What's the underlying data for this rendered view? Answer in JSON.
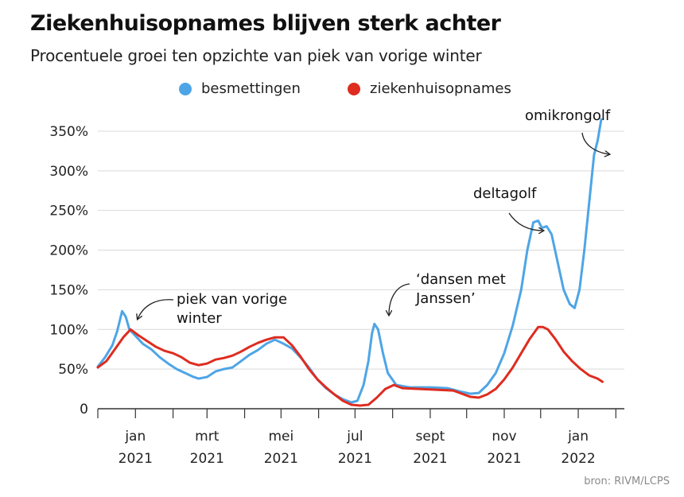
{
  "title": "Ziekenhuisopnames blijven sterk achter",
  "subtitle": "Procentuele groei ten opzichte van piek van vorige winter",
  "source": "bron: RIVM/LCPS",
  "colors": {
    "blue": "#4ea5e6",
    "red": "#de2c20",
    "grid": "#d9d9d9",
    "axis": "#333333"
  },
  "chart_data": {
    "type": "line",
    "title": "Ziekenhuisopnames blijven sterk achter",
    "subtitle": "Procentuele groei ten opzichte van piek van vorige winter",
    "xlabel": "",
    "ylabel": "",
    "xlim": [
      "2020-12-01",
      "2022-02-08"
    ],
    "ylim": [
      0,
      365
    ],
    "y_ticks": [
      {
        "value": 0,
        "label": "0"
      },
      {
        "value": 50,
        "label": "50%"
      },
      {
        "value": 100,
        "label": "100%"
      },
      {
        "value": 150,
        "label": "150%"
      },
      {
        "value": 200,
        "label": "200%"
      },
      {
        "value": 250,
        "label": "250%"
      },
      {
        "value": 300,
        "label": "300%"
      },
      {
        "value": 350,
        "label": "350%"
      }
    ],
    "x_ticks": [
      "2020-12-01",
      "2021-01-01",
      "2021-02-01",
      "2021-03-01",
      "2021-04-01",
      "2021-05-01",
      "2021-06-01",
      "2021-07-01",
      "2021-08-01",
      "2021-09-01",
      "2021-10-01",
      "2021-11-01",
      "2021-12-01",
      "2022-01-01",
      "2022-02-01"
    ],
    "x_labels": [
      {
        "date": "2021-01-01",
        "month": "jan",
        "year": "2021"
      },
      {
        "date": "2021-03-01",
        "month": "mrt",
        "year": "2021"
      },
      {
        "date": "2021-05-01",
        "month": "mei",
        "year": "2021"
      },
      {
        "date": "2021-07-01",
        "month": "jul",
        "year": "2021"
      },
      {
        "date": "2021-09-01",
        "month": "sept",
        "year": "2021"
      },
      {
        "date": "2021-11-01",
        "month": "nov",
        "year": "2021"
      },
      {
        "date": "2022-01-01",
        "month": "jan",
        "year": "2022"
      }
    ],
    "grid": true,
    "legend_position": "top",
    "series": [
      {
        "name": "besmettingen",
        "color": "#4ea5e6",
        "points": [
          [
            "2020-12-01",
            53
          ],
          [
            "2020-12-07",
            65
          ],
          [
            "2020-12-13",
            80
          ],
          [
            "2020-12-17",
            98
          ],
          [
            "2020-12-21",
            123
          ],
          [
            "2020-12-24",
            116
          ],
          [
            "2020-12-27",
            100
          ],
          [
            "2021-01-01",
            92
          ],
          [
            "2021-01-07",
            82
          ],
          [
            "2021-01-14",
            75
          ],
          [
            "2021-01-21",
            65
          ],
          [
            "2021-01-28",
            57
          ],
          [
            "2021-02-04",
            50
          ],
          [
            "2021-02-11",
            45
          ],
          [
            "2021-02-18",
            40
          ],
          [
            "2021-02-22",
            38
          ],
          [
            "2021-03-01",
            40
          ],
          [
            "2021-03-08",
            47
          ],
          [
            "2021-03-15",
            50
          ],
          [
            "2021-03-22",
            52
          ],
          [
            "2021-03-29",
            60
          ],
          [
            "2021-04-05",
            68
          ],
          [
            "2021-04-12",
            74
          ],
          [
            "2021-04-19",
            82
          ],
          [
            "2021-04-26",
            87
          ],
          [
            "2021-05-03",
            82
          ],
          [
            "2021-05-10",
            76
          ],
          [
            "2021-05-17",
            65
          ],
          [
            "2021-05-24",
            52
          ],
          [
            "2021-05-31",
            37
          ],
          [
            "2021-06-07",
            26
          ],
          [
            "2021-06-14",
            18
          ],
          [
            "2021-06-21",
            12
          ],
          [
            "2021-06-28",
            8
          ],
          [
            "2021-07-03",
            10
          ],
          [
            "2021-07-08",
            30
          ],
          [
            "2021-07-12",
            60
          ],
          [
            "2021-07-15",
            95
          ],
          [
            "2021-07-17",
            107
          ],
          [
            "2021-07-20",
            100
          ],
          [
            "2021-07-24",
            70
          ],
          [
            "2021-07-28",
            45
          ],
          [
            "2021-08-04",
            30
          ],
          [
            "2021-08-15",
            27
          ],
          [
            "2021-09-01",
            27
          ],
          [
            "2021-09-15",
            26
          ],
          [
            "2021-09-25",
            22
          ],
          [
            "2021-10-04",
            19
          ],
          [
            "2021-10-11",
            20
          ],
          [
            "2021-10-18",
            30
          ],
          [
            "2021-10-25",
            45
          ],
          [
            "2021-11-01",
            70
          ],
          [
            "2021-11-08",
            105
          ],
          [
            "2021-11-15",
            150
          ],
          [
            "2021-11-20",
            200
          ],
          [
            "2021-11-25",
            235
          ],
          [
            "2021-11-29",
            237
          ],
          [
            "2021-12-02",
            228
          ],
          [
            "2021-12-06",
            230
          ],
          [
            "2021-12-10",
            220
          ],
          [
            "2021-12-15",
            185
          ],
          [
            "2021-12-20",
            150
          ],
          [
            "2021-12-25",
            132
          ],
          [
            "2021-12-29",
            127
          ],
          [
            "2022-01-02",
            150
          ],
          [
            "2022-01-06",
            200
          ],
          [
            "2022-01-10",
            260
          ],
          [
            "2022-01-14",
            320
          ],
          [
            "2022-01-17",
            338
          ],
          [
            "2022-01-20",
            365
          ]
        ]
      },
      {
        "name": "ziekenhuisopnames",
        "color": "#de2c20",
        "points": [
          [
            "2020-12-01",
            52
          ],
          [
            "2020-12-08",
            60
          ],
          [
            "2020-12-15",
            75
          ],
          [
            "2020-12-22",
            90
          ],
          [
            "2020-12-28",
            100
          ],
          [
            "2021-01-04",
            92
          ],
          [
            "2021-01-11",
            85
          ],
          [
            "2021-01-18",
            78
          ],
          [
            "2021-01-25",
            73
          ],
          [
            "2021-02-01",
            70
          ],
          [
            "2021-02-08",
            65
          ],
          [
            "2021-02-15",
            58
          ],
          [
            "2021-02-22",
            55
          ],
          [
            "2021-03-01",
            57
          ],
          [
            "2021-03-08",
            62
          ],
          [
            "2021-03-15",
            64
          ],
          [
            "2021-03-22",
            67
          ],
          [
            "2021-03-29",
            72
          ],
          [
            "2021-04-05",
            78
          ],
          [
            "2021-04-12",
            83
          ],
          [
            "2021-04-19",
            87
          ],
          [
            "2021-04-26",
            90
          ],
          [
            "2021-05-03",
            90
          ],
          [
            "2021-05-10",
            80
          ],
          [
            "2021-05-17",
            66
          ],
          [
            "2021-05-24",
            50
          ],
          [
            "2021-05-31",
            37
          ],
          [
            "2021-06-07",
            27
          ],
          [
            "2021-06-14",
            18
          ],
          [
            "2021-06-21",
            10
          ],
          [
            "2021-06-28",
            5
          ],
          [
            "2021-07-05",
            4
          ],
          [
            "2021-07-12",
            5
          ],
          [
            "2021-07-19",
            14
          ],
          [
            "2021-07-26",
            25
          ],
          [
            "2021-08-02",
            30
          ],
          [
            "2021-08-09",
            26
          ],
          [
            "2021-08-23",
            25
          ],
          [
            "2021-09-06",
            24
          ],
          [
            "2021-09-20",
            23
          ],
          [
            "2021-10-04",
            15
          ],
          [
            "2021-10-11",
            14
          ],
          [
            "2021-10-18",
            18
          ],
          [
            "2021-10-25",
            25
          ],
          [
            "2021-11-01",
            37
          ],
          [
            "2021-11-08",
            52
          ],
          [
            "2021-11-15",
            70
          ],
          [
            "2021-11-22",
            88
          ],
          [
            "2021-11-29",
            103
          ],
          [
            "2021-12-03",
            103
          ],
          [
            "2021-12-07",
            100
          ],
          [
            "2021-12-13",
            88
          ],
          [
            "2021-12-20",
            72
          ],
          [
            "2021-12-27",
            60
          ],
          [
            "2022-01-03",
            50
          ],
          [
            "2022-01-10",
            42
          ],
          [
            "2022-01-17",
            38
          ],
          [
            "2022-01-21",
            34
          ]
        ]
      }
    ],
    "annotations": [
      {
        "lines": [
          "piek van vorige",
          "winter"
        ]
      },
      {
        "lines": [
          "‘dansen met",
          "Janssen’"
        ]
      },
      {
        "lines": [
          "deltagolf"
        ]
      },
      {
        "lines": [
          "omikrongolf"
        ]
      }
    ]
  }
}
